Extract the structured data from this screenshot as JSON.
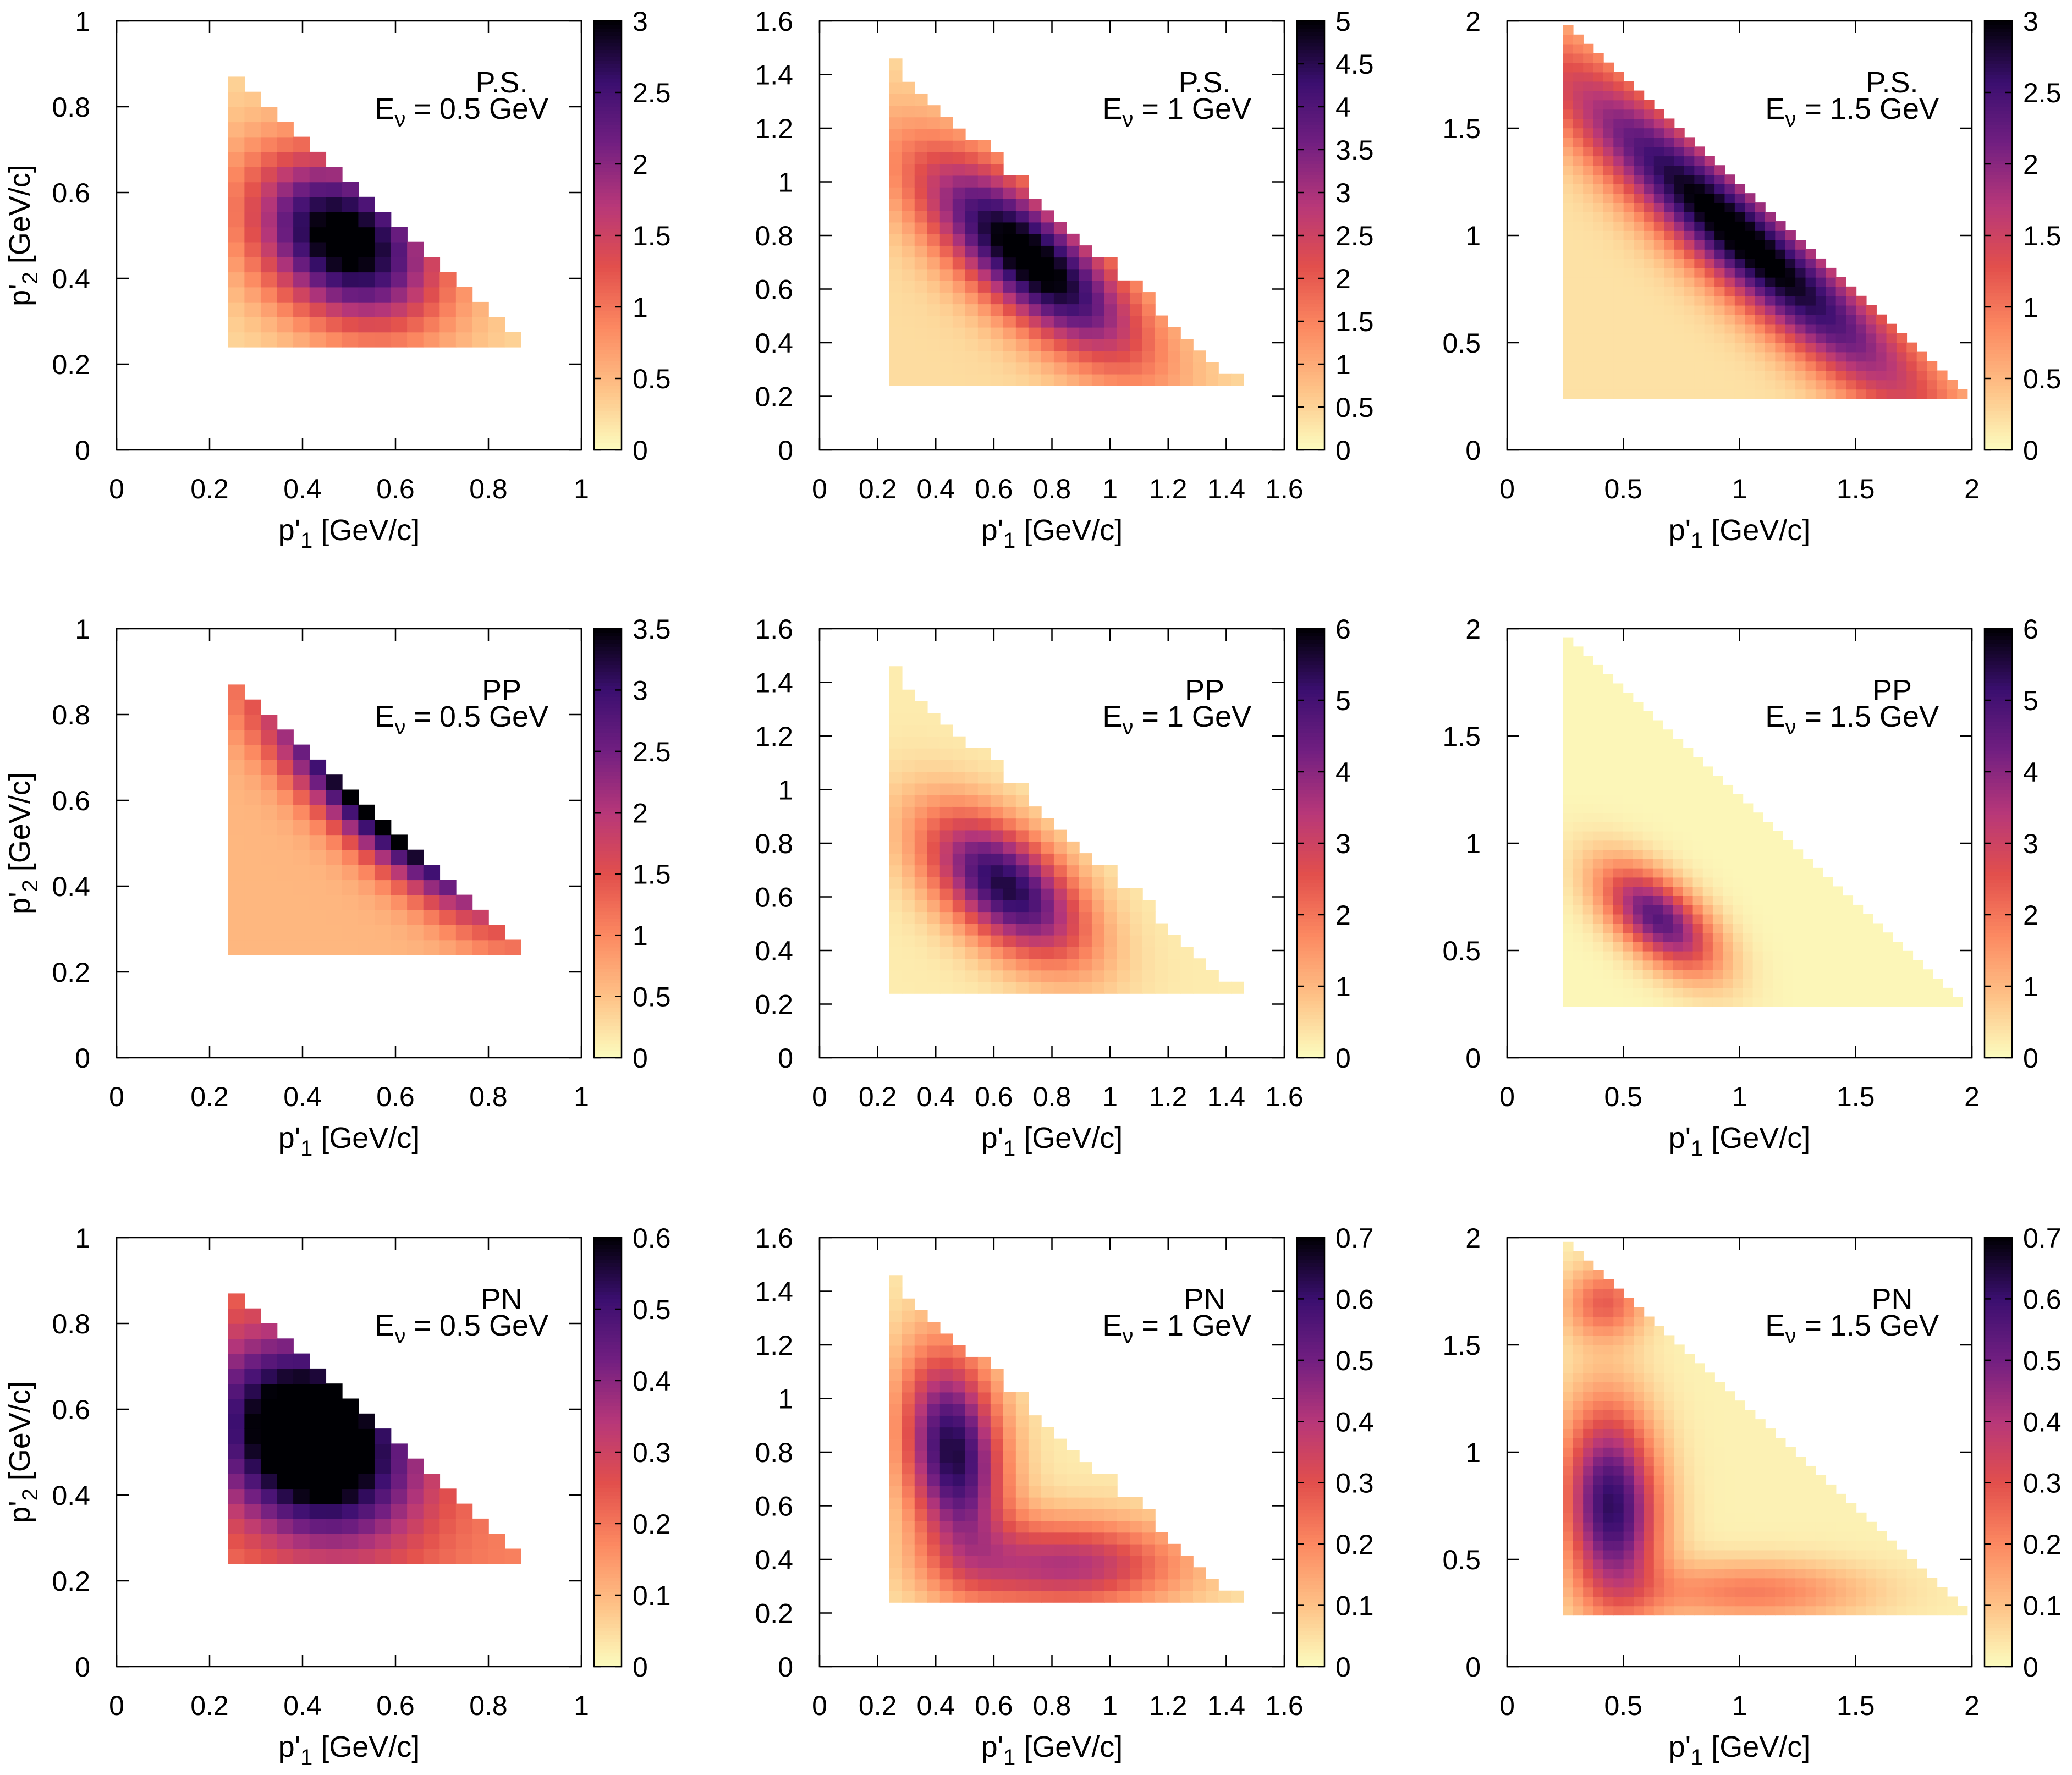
{
  "colormap": {
    "name": "magma-reversed",
    "stops": [
      "#fcfdbf",
      "#fec287",
      "#fc8961",
      "#e24f4c",
      "#b73779",
      "#721f81",
      "#3b0f70",
      "#000004"
    ]
  },
  "chart_data": [
    {
      "type": "heatmap",
      "row": 0,
      "col": 0,
      "xlabel": "p'1 [GeV/c]",
      "ylabel": "p'2 [GeV/c]",
      "xlim": [
        0,
        1
      ],
      "ylim": [
        0,
        1
      ],
      "xticks": [
        "0",
        "0.2",
        "0.4",
        "0.6",
        "0.8",
        "1"
      ],
      "yticks": [
        "0",
        "0.2",
        "0.4",
        "0.6",
        "0.8",
        "1"
      ],
      "colorbar_range": [
        0,
        3
      ],
      "colorbar_ticks": [
        "0",
        "0.5",
        "1",
        "1.5",
        "2",
        "2.5",
        "3"
      ],
      "model": "P.S.",
      "energy": "Eν = 0.5 GeV",
      "region": {
        "pmin": 0.24,
        "pmax": 0.87,
        "sum_max": 1.12,
        "cells": 18
      },
      "peaks": [
        {
          "x": 0.49,
          "y": 0.49,
          "sx": 0.14,
          "sy": 0.14,
          "rho": -0.3,
          "amp": 3.0
        }
      ],
      "floor": 0.25
    },
    {
      "type": "heatmap",
      "row": 0,
      "col": 1,
      "xlabel": "p'1 [GeV/c]",
      "ylabel": "",
      "xlim": [
        0,
        1.6
      ],
      "ylim": [
        0,
        1.6
      ],
      "xticks": [
        "0",
        "0.2",
        "0.4",
        "0.6",
        "0.8",
        "1",
        "1.2",
        "1.4",
        "1.6"
      ],
      "yticks": [
        "0",
        "0.2",
        "0.4",
        "0.6",
        "0.8",
        "1",
        "1.2",
        "1.4",
        "1.6"
      ],
      "colorbar_range": [
        0,
        5
      ],
      "colorbar_ticks": [
        "0",
        "0.5",
        "1",
        "1.5",
        "2",
        "2.5",
        "3",
        "3.5",
        "4",
        "4.5",
        "5"
      ],
      "model": "P.S.",
      "energy": "Eν = 1 GeV",
      "region": {
        "pmin": 0.24,
        "pmax": 1.46,
        "sum_max": 1.7,
        "cells": 28
      },
      "peaks": [
        {
          "x": 0.72,
          "y": 0.72,
          "sx": 0.26,
          "sy": 0.26,
          "rho": -0.75,
          "amp": 5.0
        }
      ],
      "floor": 0.4
    },
    {
      "type": "heatmap",
      "row": 0,
      "col": 2,
      "xlabel": "p'1 [GeV/c]",
      "ylabel": "",
      "xlim": [
        0,
        2
      ],
      "ylim": [
        0,
        2
      ],
      "xticks": [
        "0",
        "0.5",
        "1",
        "1.5",
        "2"
      ],
      "yticks": [
        "0",
        "0.5",
        "1",
        "1.5",
        "2"
      ],
      "colorbar_range": [
        0,
        3
      ],
      "colorbar_ticks": [
        "0",
        "0.5",
        "1",
        "1.5",
        "2",
        "2.5",
        "3"
      ],
      "model": "P.S.",
      "energy": "Eν = 1.5 GeV",
      "region": {
        "pmin": 0.24,
        "pmax": 1.98,
        "sum_max": 2.22,
        "cells": 40
      },
      "peaks": [
        {
          "x": 1.0,
          "y": 1.0,
          "sx": 0.55,
          "sy": 0.55,
          "rho": -0.93,
          "amp": 3.0
        }
      ],
      "floor": 0.2
    },
    {
      "type": "heatmap",
      "row": 1,
      "col": 0,
      "xlabel": "p'1 [GeV/c]",
      "ylabel": "p'2 [GeV/c]",
      "xlim": [
        0,
        1
      ],
      "ylim": [
        0,
        1
      ],
      "xticks": [
        "0",
        "0.2",
        "0.4",
        "0.6",
        "0.8",
        "1"
      ],
      "yticks": [
        "0",
        "0.2",
        "0.4",
        "0.6",
        "0.8",
        "1"
      ],
      "colorbar_range": [
        0,
        3.5
      ],
      "colorbar_ticks": [
        "0",
        "0.5",
        "1",
        "1.5",
        "2",
        "2.5",
        "3",
        "3.5"
      ],
      "model": "PP",
      "energy": "Eν = 0.5 GeV",
      "region": {
        "pmin": 0.24,
        "pmax": 0.87,
        "sum_max": 1.12,
        "cells": 18
      },
      "peaks": [
        {
          "x": 0.58,
          "y": 0.58,
          "sx": 0.17,
          "sy": 0.17,
          "rho": -0.85,
          "amp": 3.6
        }
      ],
      "floor": 0.6
    },
    {
      "type": "heatmap",
      "row": 1,
      "col": 1,
      "xlabel": "p'1 [GeV/c]",
      "ylabel": "",
      "xlim": [
        0,
        1.6
      ],
      "ylim": [
        0,
        1.6
      ],
      "xticks": [
        "0",
        "0.2",
        "0.4",
        "0.6",
        "0.8",
        "1",
        "1.2",
        "1.4",
        "1.6"
      ],
      "yticks": [
        "0",
        "0.2",
        "0.4",
        "0.6",
        "0.8",
        "1",
        "1.2",
        "1.4",
        "1.6"
      ],
      "colorbar_range": [
        0,
        6
      ],
      "colorbar_ticks": [
        "0",
        "1",
        "2",
        "3",
        "4",
        "5",
        "6"
      ],
      "model": "PP",
      "energy": "Eν = 1 GeV",
      "region": {
        "pmin": 0.24,
        "pmax": 1.46,
        "sum_max": 1.7,
        "cells": 28
      },
      "peaks": [
        {
          "x": 0.64,
          "y": 0.64,
          "sx": 0.19,
          "sy": 0.19,
          "rho": -0.55,
          "amp": 5.3
        }
      ],
      "floor": 0.25
    },
    {
      "type": "heatmap",
      "row": 1,
      "col": 2,
      "xlabel": "p'1 [GeV/c]",
      "ylabel": "",
      "xlim": [
        0,
        2
      ],
      "ylim": [
        0,
        2
      ],
      "xticks": [
        "0",
        "0.5",
        "1",
        "1.5",
        "2"
      ],
      "yticks": [
        "0",
        "0.5",
        "1",
        "1.5",
        "2"
      ],
      "colorbar_range": [
        0,
        6
      ],
      "colorbar_ticks": [
        "0",
        "1",
        "2",
        "3",
        "4",
        "5",
        "6"
      ],
      "model": "PP",
      "energy": "Eν = 1.5 GeV",
      "region": {
        "pmin": 0.24,
        "pmax": 1.96,
        "sum_max": 2.2,
        "cells": 40
      },
      "peaks": [
        {
          "x": 0.65,
          "y": 0.65,
          "sx": 0.17,
          "sy": 0.17,
          "rho": -0.6,
          "amp": 4.6
        }
      ],
      "floor": 0.1
    },
    {
      "type": "heatmap",
      "row": 2,
      "col": 0,
      "xlabel": "p'1 [GeV/c]",
      "ylabel": "p'2 [GeV/c]",
      "xlim": [
        0,
        1
      ],
      "ylim": [
        0,
        1
      ],
      "xticks": [
        "0",
        "0.2",
        "0.4",
        "0.6",
        "0.8",
        "1"
      ],
      "yticks": [
        "0",
        "0.2",
        "0.4",
        "0.6",
        "0.8",
        "1"
      ],
      "colorbar_range": [
        0,
        0.6
      ],
      "colorbar_ticks": [
        "0",
        "0.1",
        "0.2",
        "0.3",
        "0.4",
        "0.5",
        "0.6"
      ],
      "model": "PN",
      "energy": "Eν = 0.5 GeV",
      "region": {
        "pmin": 0.24,
        "pmax": 0.87,
        "sum_max": 1.12,
        "cells": 18
      },
      "peaks": [
        {
          "x": 0.42,
          "y": 0.53,
          "sx": 0.15,
          "sy": 0.16,
          "rho": -0.2,
          "amp": 0.6
        }
      ],
      "floor": 0.18
    },
    {
      "type": "heatmap",
      "row": 2,
      "col": 1,
      "xlabel": "p'1 [GeV/c]",
      "ylabel": "",
      "xlim": [
        0,
        1.6
      ],
      "ylim": [
        0,
        1.6
      ],
      "xticks": [
        "0",
        "0.2",
        "0.4",
        "0.6",
        "0.8",
        "1",
        "1.2",
        "1.4",
        "1.6"
      ],
      "yticks": [
        "0",
        "0.2",
        "0.4",
        "0.6",
        "0.8",
        "1",
        "1.2",
        "1.4",
        "1.6"
      ],
      "colorbar_range": [
        0,
        0.7
      ],
      "colorbar_ticks": [
        "0",
        "0.1",
        "0.2",
        "0.3",
        "0.4",
        "0.5",
        "0.6",
        "0.7"
      ],
      "model": "PN",
      "energy": "Eν = 1 GeV",
      "region": {
        "pmin": 0.24,
        "pmax": 1.46,
        "sum_max": 1.7,
        "cells": 28
      },
      "peaks": [
        {
          "x": 0.46,
          "y": 0.8,
          "sx": 0.12,
          "sy": 0.26,
          "rho": -0.2,
          "amp": 0.62
        },
        {
          "x": 0.85,
          "y": 0.38,
          "sx": 0.28,
          "sy": 0.12,
          "rho": 0.0,
          "amp": 0.38
        }
      ],
      "floor": 0.03
    },
    {
      "type": "heatmap",
      "row": 2,
      "col": 2,
      "xlabel": "p'1 [GeV/c]",
      "ylabel": "",
      "xlim": [
        0,
        2
      ],
      "ylim": [
        0,
        2
      ],
      "xticks": [
        "0",
        "0.5",
        "1",
        "1.5",
        "2"
      ],
      "yticks": [
        "0",
        "0.5",
        "1",
        "1.5",
        "2"
      ],
      "colorbar_range": [
        0,
        0.7
      ],
      "colorbar_ticks": [
        "0",
        "0.1",
        "0.2",
        "0.3",
        "0.4",
        "0.5",
        "0.6",
        "0.7"
      ],
      "model": "PN",
      "energy": "Eν = 1.5 GeV",
      "region": {
        "pmin": 0.24,
        "pmax": 1.98,
        "sum_max": 2.22,
        "cells": 40
      },
      "peaks": [
        {
          "x": 0.45,
          "y": 0.75,
          "sx": 0.14,
          "sy": 0.32,
          "rho": -0.1,
          "amp": 0.6
        },
        {
          "x": 0.42,
          "y": 1.7,
          "sx": 0.12,
          "sy": 0.12,
          "rho": 0.0,
          "amp": 0.25
        },
        {
          "x": 1.05,
          "y": 0.35,
          "sx": 0.35,
          "sy": 0.1,
          "rho": 0.0,
          "amp": 0.2
        }
      ],
      "floor": 0.02
    }
  ]
}
